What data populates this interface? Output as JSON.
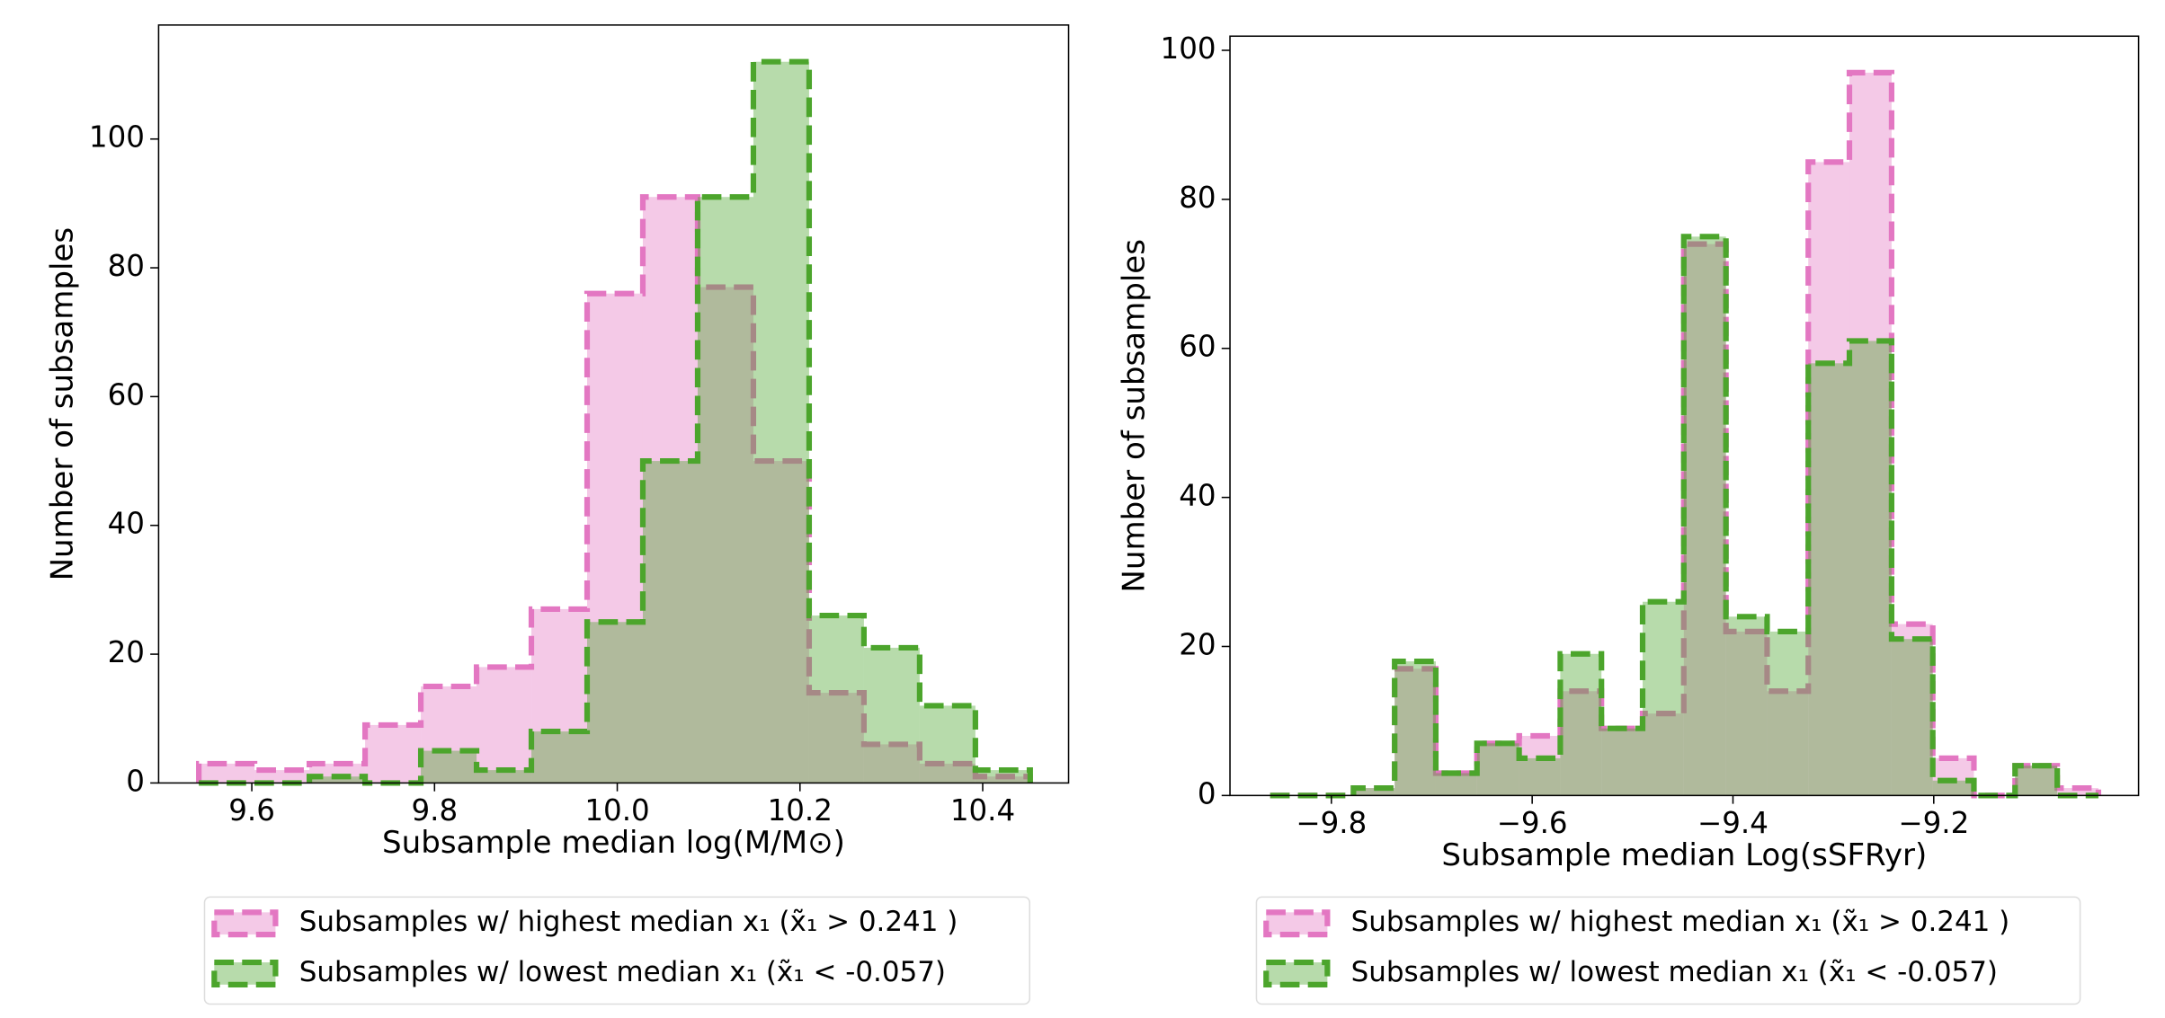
{
  "chart_data": [
    {
      "type": "histogram",
      "xlabel": "Subsample median log(M/M⊙)",
      "ylabel": "Number of subsamples",
      "bins": [
        9.542,
        9.603,
        9.663,
        9.724,
        9.785,
        9.846,
        9.906,
        9.967,
        10.028,
        10.088,
        10.149,
        10.21,
        10.27,
        10.331,
        10.392,
        10.452
      ],
      "series": [
        {
          "name": "Subsamples w/ highest median x₁ (x̃₁ > 0.241 )",
          "color": "#e377c2",
          "values": [
            3,
            2,
            3,
            9,
            15,
            18,
            27,
            76,
            91,
            77,
            50,
            14,
            6,
            3,
            1
          ]
        },
        {
          "name": "Subsamples w/ lowest median x₁ (x̃₁ < -0.057)",
          "color": "#4ca52c",
          "values": [
            0,
            0,
            1,
            0,
            5,
            2,
            8,
            25,
            50,
            91,
            112,
            26,
            21,
            12,
            2
          ]
        }
      ],
      "xlim": [
        9.498,
        10.494
      ],
      "ylim": [
        0,
        117.7
      ],
      "xticks": [
        9.6,
        9.8,
        {
          "value": 10.0,
          "label": "10.0"
        },
        10.2,
        10.4
      ],
      "yticks": [
        0,
        20,
        40,
        60,
        80,
        100
      ],
      "legend": "below"
    },
    {
      "type": "histogram",
      "xlabel": "Subsample median Log(sSFRyr)",
      "ylabel": "Number of subsamples",
      "bins": [
        -9.861,
        -9.82,
        -9.778,
        -9.737,
        -9.696,
        -9.655,
        -9.613,
        -9.572,
        -9.531,
        -9.49,
        -9.449,
        -9.407,
        -9.366,
        -9.325,
        -9.284,
        -9.242,
        -9.201,
        -9.16,
        -9.119,
        -9.077,
        -9.036
      ],
      "series": [
        {
          "name": "Subsamples w/ highest median x₁ (x̃₁ > 0.241 )",
          "color": "#e377c2",
          "values": [
            0,
            0,
            1,
            17,
            3,
            7,
            8,
            14,
            9,
            11,
            74,
            22,
            14,
            85,
            97,
            23,
            5,
            0,
            4,
            1
          ]
        },
        {
          "name": "Subsamples w/ lowest median x₁ (x̃₁ < -0.057)",
          "color": "#4ca52c",
          "values": [
            0,
            0,
            1,
            18,
            3,
            7,
            5,
            19,
            9,
            26,
            75,
            24,
            22,
            58,
            61,
            21,
            2,
            0,
            4,
            0
          ]
        }
      ],
      "xlim": [
        -9.901,
        -8.996
      ],
      "ylim": [
        0,
        101.9
      ],
      "xticks": [
        {
          "value": -9.8,
          "label": "−9.8"
        },
        {
          "value": -9.6,
          "label": "−9.6"
        },
        {
          "value": -9.4,
          "label": "−9.4"
        },
        {
          "value": -9.2,
          "label": "−9.2"
        }
      ],
      "yticks": [
        0,
        20,
        40,
        60,
        80,
        100
      ],
      "legend": "below"
    }
  ]
}
